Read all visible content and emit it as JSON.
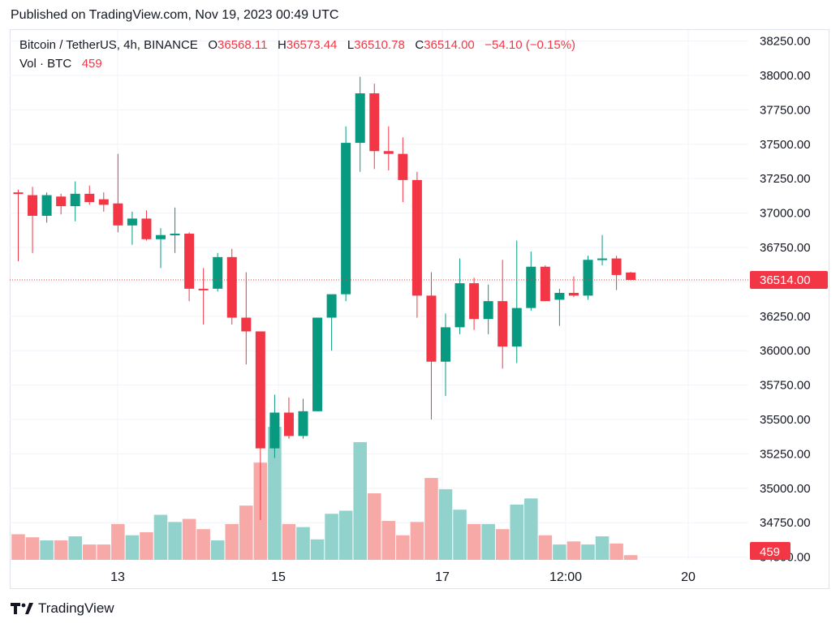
{
  "header": {
    "published": "Published on TradingView.com, Nov 19, 2023 00:49 UTC"
  },
  "legend": {
    "symbol": "Bitcoin / TetherUS, 4h, BINANCE",
    "o_label": "O",
    "o_value": "36568.11",
    "h_label": "H",
    "h_value": "36573.44",
    "l_label": "L",
    "l_value": "36510.78",
    "c_label": "C",
    "c_value": "36514.00",
    "change": "−54.10 (−0.15%)",
    "vol_label": "Vol · BTC",
    "vol_value": "459"
  },
  "footer": {
    "brand": "TradingView"
  },
  "colors": {
    "up": "#089981",
    "down": "#f23645",
    "up_vol": "#92d2cc",
    "down_vol": "#f7a9a7",
    "grid": "#f0f3fa"
  },
  "chart_data": {
    "type": "candlestick",
    "symbol": "Bitcoin / TetherUS",
    "interval": "4h",
    "exchange": "BINANCE",
    "y_ticks": [
      "38250.00",
      "38000.00",
      "37750.00",
      "37500.00",
      "37250.00",
      "37000.00",
      "36750.00",
      "36500.00",
      "36250.00",
      "36000.00",
      "35750.00",
      "35500.00",
      "35250.00",
      "35000.00",
      "34750.00",
      "34500.00"
    ],
    "ylim": [
      34480,
      38330
    ],
    "x_ticks": [
      "13",
      "15",
      "17",
      "12:00",
      "20"
    ],
    "last_price": "36514.00",
    "last_volume": "459",
    "candles": [
      {
        "o": 37150,
        "h": 37170,
        "l": 36650,
        "c": 37140
      },
      {
        "o": 37130,
        "h": 37190,
        "l": 36710,
        "c": 36980
      },
      {
        "o": 36980,
        "h": 37150,
        "l": 36930,
        "c": 37130
      },
      {
        "o": 37120,
        "h": 37140,
        "l": 36990,
        "c": 37050
      },
      {
        "o": 37050,
        "h": 37230,
        "l": 36940,
        "c": 37140
      },
      {
        "o": 37140,
        "h": 37200,
        "l": 37060,
        "c": 37080
      },
      {
        "o": 37100,
        "h": 37150,
        "l": 37010,
        "c": 37060
      },
      {
        "o": 37070,
        "h": 37430,
        "l": 36860,
        "c": 36910
      },
      {
        "o": 36910,
        "h": 37010,
        "l": 36770,
        "c": 36960
      },
      {
        "o": 36960,
        "h": 37020,
        "l": 36800,
        "c": 36810
      },
      {
        "o": 36810,
        "h": 36890,
        "l": 36600,
        "c": 36840
      },
      {
        "o": 36840,
        "h": 37040,
        "l": 36710,
        "c": 36850
      },
      {
        "o": 36850,
        "h": 36860,
        "l": 36360,
        "c": 36450
      },
      {
        "o": 36450,
        "h": 36600,
        "l": 36190,
        "c": 36440
      },
      {
        "o": 36450,
        "h": 36710,
        "l": 36430,
        "c": 36680
      },
      {
        "o": 36680,
        "h": 36740,
        "l": 36190,
        "c": 36240
      },
      {
        "o": 36240,
        "h": 36570,
        "l": 35900,
        "c": 36140
      },
      {
        "o": 36140,
        "h": 36140,
        "l": 34770,
        "c": 35290
      },
      {
        "o": 35290,
        "h": 35680,
        "l": 35220,
        "c": 35550
      },
      {
        "o": 35550,
        "h": 35660,
        "l": 35360,
        "c": 35380
      },
      {
        "o": 35380,
        "h": 35650,
        "l": 35360,
        "c": 35560
      },
      {
        "o": 35560,
        "h": 36240,
        "l": 35560,
        "c": 36240
      },
      {
        "o": 36240,
        "h": 36400,
        "l": 36000,
        "c": 36410
      },
      {
        "o": 36410,
        "h": 37630,
        "l": 36360,
        "c": 37510
      },
      {
        "o": 37510,
        "h": 37990,
        "l": 37300,
        "c": 37870
      },
      {
        "o": 37870,
        "h": 37940,
        "l": 37320,
        "c": 37450
      },
      {
        "o": 37450,
        "h": 37630,
        "l": 37310,
        "c": 37430
      },
      {
        "o": 37430,
        "h": 37550,
        "l": 37080,
        "c": 37240
      },
      {
        "o": 37240,
        "h": 37300,
        "l": 36240,
        "c": 36400
      },
      {
        "o": 36400,
        "h": 36570,
        "l": 35500,
        "c": 35920
      },
      {
        "o": 35920,
        "h": 36270,
        "l": 35670,
        "c": 36170
      },
      {
        "o": 36170,
        "h": 36670,
        "l": 36120,
        "c": 36490
      },
      {
        "o": 36490,
        "h": 36530,
        "l": 36150,
        "c": 36230
      },
      {
        "o": 36230,
        "h": 36480,
        "l": 36120,
        "c": 36360
      },
      {
        "o": 36360,
        "h": 36660,
        "l": 35870,
        "c": 36030
      },
      {
        "o": 36030,
        "h": 36800,
        "l": 35910,
        "c": 36310
      },
      {
        "o": 36310,
        "h": 36720,
        "l": 36290,
        "c": 36610
      },
      {
        "o": 36610,
        "h": 36620,
        "l": 36360,
        "c": 36360
      },
      {
        "o": 36370,
        "h": 36450,
        "l": 36180,
        "c": 36420
      },
      {
        "o": 36420,
        "h": 36540,
        "l": 36390,
        "c": 36400
      },
      {
        "o": 36400,
        "h": 36690,
        "l": 36370,
        "c": 36660
      },
      {
        "o": 36660,
        "h": 36840,
        "l": 36620,
        "c": 36670
      },
      {
        "o": 36670,
        "h": 36690,
        "l": 36440,
        "c": 36550
      },
      {
        "o": 36568,
        "h": 36573,
        "l": 36511,
        "c": 36514
      }
    ],
    "volumes": [
      2500,
      2200,
      1900,
      1900,
      2300,
      1500,
      1500,
      3500,
      2400,
      2700,
      4400,
      3700,
      4000,
      3000,
      1900,
      3500,
      5300,
      9500,
      13000,
      3500,
      3200,
      2000,
      4500,
      4800,
      11500,
      6500,
      3800,
      2400,
      3700,
      8000,
      6900,
      4900,
      3500,
      3500,
      3000,
      5400,
      6000,
      2400,
      1500,
      1800,
      1500,
      2300,
      1600,
      459
    ]
  }
}
